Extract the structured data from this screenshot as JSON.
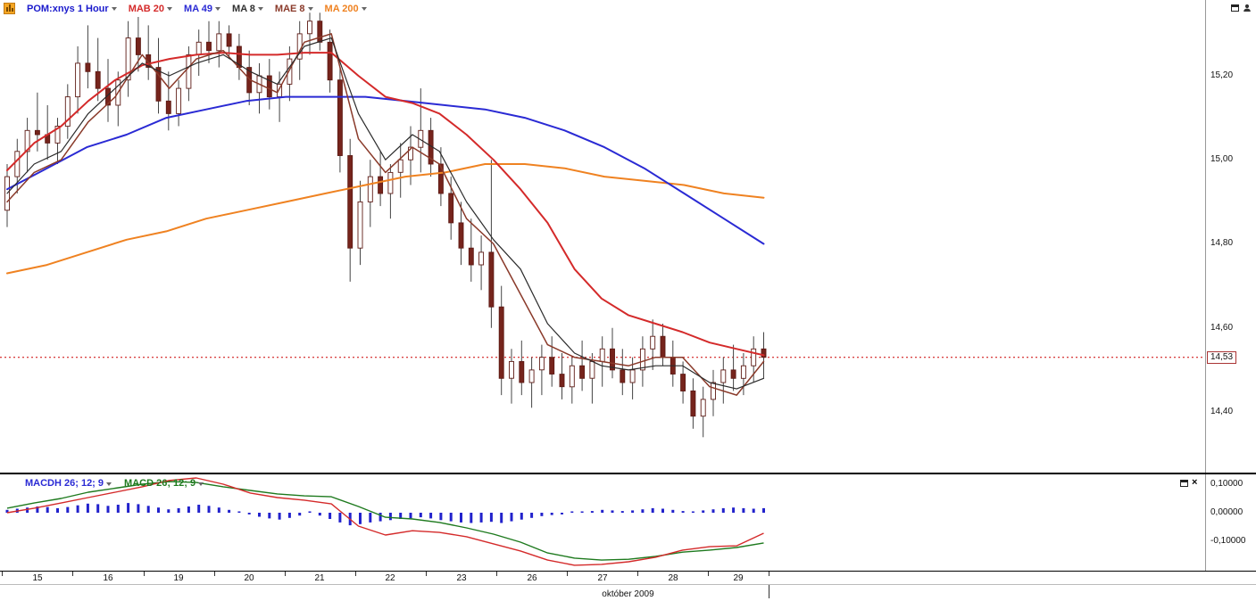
{
  "toolbar": {
    "symbol_label": "POM:xnys 1 Hour",
    "symbol_color": "#1a1acc",
    "indicators": [
      {
        "label": "MAB 20",
        "color": "#d42a2a"
      },
      {
        "label": "MA 49",
        "color": "#2a2ad4"
      },
      {
        "label": "MA 8",
        "color": "#303030"
      },
      {
        "label": "MAE 8",
        "color": "#8a3a2a"
      },
      {
        "label": "MA 200",
        "color": "#ef8221"
      }
    ]
  },
  "macd_panel": {
    "indicators": [
      {
        "label": "MACDH 26; 12; 9",
        "color": "#2a2ad4"
      },
      {
        "label": "MACD 26; 12; 9",
        "color": "#1e7a1e"
      }
    ]
  },
  "chart_data": {
    "type": "candlestick",
    "symbol": "POM:xnys",
    "interval": "1 Hour",
    "month_label": "október 2009",
    "dates": [
      "15",
      "16",
      "19",
      "20",
      "21",
      "22",
      "23",
      "26",
      "27",
      "28",
      "29"
    ],
    "day_start_indices": [
      0,
      7,
      14,
      21,
      28,
      35,
      42,
      49,
      56,
      63,
      70
    ],
    "price_axis": {
      "range": [
        14.26,
        15.38
      ],
      "ticks": [
        {
          "value": 15.2,
          "label": "15,20"
        },
        {
          "value": 15.0,
          "label": "15,00"
        },
        {
          "value": 14.8,
          "label": "14,80"
        },
        {
          "value": 14.6,
          "label": "14,60"
        },
        {
          "value": 14.4,
          "label": "14,40"
        }
      ]
    },
    "current_price": {
      "value": 14.53,
      "label": "14,53"
    },
    "colors": {
      "candle_up_fill": "#ffffff",
      "candle_down_fill": "#76241c",
      "candle_border": "#5d1a14",
      "wick": "#444444",
      "current_price_line": "#cc0000",
      "histogram": "#2222cc"
    },
    "candles": [
      [
        14.88,
        14.99,
        14.84,
        14.96
      ],
      [
        14.96,
        15.05,
        14.92,
        15.02
      ],
      [
        15.02,
        15.1,
        14.97,
        15.07
      ],
      [
        15.07,
        15.16,
        15.02,
        15.06
      ],
      [
        15.06,
        15.13,
        15.0,
        15.04
      ],
      [
        15.04,
        15.1,
        14.99,
        15.08
      ],
      [
        15.08,
        15.18,
        15.05,
        15.15
      ],
      [
        15.15,
        15.27,
        15.11,
        15.23
      ],
      [
        15.23,
        15.32,
        15.17,
        15.21
      ],
      [
        15.21,
        15.29,
        15.14,
        15.17
      ],
      [
        15.17,
        15.24,
        15.09,
        15.13
      ],
      [
        15.13,
        15.21,
        15.08,
        15.19
      ],
      [
        15.19,
        15.33,
        15.15,
        15.29
      ],
      [
        15.29,
        15.34,
        15.21,
        15.25
      ],
      [
        15.25,
        15.32,
        15.19,
        15.22
      ],
      [
        15.22,
        15.29,
        15.11,
        15.14
      ],
      [
        15.14,
        15.21,
        15.07,
        15.11
      ],
      [
        15.11,
        15.19,
        15.08,
        15.17
      ],
      [
        15.17,
        15.27,
        15.14,
        15.25
      ],
      [
        15.25,
        15.31,
        15.2,
        15.28
      ],
      [
        15.28,
        15.33,
        15.23,
        15.26
      ],
      [
        15.26,
        15.33,
        15.22,
        15.3
      ],
      [
        15.3,
        15.32,
        15.24,
        15.27
      ],
      [
        15.27,
        15.3,
        15.19,
        15.22
      ],
      [
        15.22,
        15.26,
        15.13,
        15.16
      ],
      [
        15.16,
        15.23,
        15.11,
        15.2
      ],
      [
        15.2,
        15.24,
        15.12,
        15.15
      ],
      [
        15.15,
        15.21,
        15.09,
        15.18
      ],
      [
        15.18,
        15.27,
        15.14,
        15.24
      ],
      [
        15.24,
        15.33,
        15.19,
        15.3
      ],
      [
        15.3,
        15.35,
        15.25,
        15.33
      ],
      [
        15.33,
        15.35,
        15.26,
        15.28
      ],
      [
        15.28,
        15.31,
        15.16,
        15.19
      ],
      [
        15.19,
        15.22,
        14.97,
        15.01
      ],
      [
        15.01,
        15.05,
        14.71,
        14.79
      ],
      [
        14.79,
        14.95,
        14.75,
        14.9
      ],
      [
        14.9,
        15.0,
        14.84,
        14.96
      ],
      [
        14.96,
        15.02,
        14.89,
        14.92
      ],
      [
        14.92,
        14.99,
        14.86,
        14.97
      ],
      [
        14.97,
        15.04,
        14.91,
        15.0
      ],
      [
        15.0,
        15.08,
        14.94,
        15.03
      ],
      [
        15.03,
        15.17,
        14.97,
        15.07
      ],
      [
        15.07,
        15.1,
        14.96,
        14.99
      ],
      [
        14.99,
        15.03,
        14.89,
        14.92
      ],
      [
        14.92,
        14.96,
        14.81,
        14.85
      ],
      [
        14.85,
        14.9,
        14.75,
        14.79
      ],
      [
        14.79,
        14.86,
        14.71,
        14.75
      ],
      [
        14.75,
        14.82,
        14.69,
        14.78
      ],
      [
        14.78,
        15.0,
        14.6,
        14.65
      ],
      [
        14.65,
        14.7,
        14.44,
        14.48
      ],
      [
        14.48,
        14.55,
        14.42,
        14.52
      ],
      [
        14.52,
        14.57,
        14.44,
        14.47
      ],
      [
        14.47,
        14.53,
        14.41,
        14.5
      ],
      [
        14.5,
        14.56,
        14.44,
        14.53
      ],
      [
        14.53,
        14.58,
        14.46,
        14.49
      ],
      [
        14.49,
        14.54,
        14.43,
        14.46
      ],
      [
        14.46,
        14.53,
        14.42,
        14.51
      ],
      [
        14.51,
        14.57,
        14.45,
        14.48
      ],
      [
        14.48,
        14.54,
        14.42,
        14.52
      ],
      [
        14.52,
        14.58,
        14.46,
        14.55
      ],
      [
        14.55,
        14.6,
        14.48,
        14.5
      ],
      [
        14.5,
        14.55,
        14.44,
        14.47
      ],
      [
        14.47,
        14.53,
        14.43,
        14.5
      ],
      [
        14.5,
        14.58,
        14.46,
        14.55
      ],
      [
        14.55,
        14.62,
        14.5,
        14.58
      ],
      [
        14.58,
        14.61,
        14.51,
        14.53
      ],
      [
        14.53,
        14.57,
        14.46,
        14.49
      ],
      [
        14.49,
        14.52,
        14.42,
        14.45
      ],
      [
        14.45,
        14.48,
        14.36,
        14.39
      ],
      [
        14.39,
        14.46,
        14.34,
        14.43
      ],
      [
        14.43,
        14.5,
        14.39,
        14.47
      ],
      [
        14.47,
        14.53,
        14.42,
        14.5
      ],
      [
        14.5,
        14.56,
        14.45,
        14.48
      ],
      [
        14.48,
        14.54,
        14.44,
        14.51
      ],
      [
        14.51,
        14.58,
        14.47,
        14.55
      ],
      [
        14.55,
        14.59,
        14.48,
        14.53
      ]
    ],
    "ma_series": [
      {
        "name": "MA 200",
        "color": "#ef8221",
        "width": 2,
        "values": [
          14.73,
          14.75,
          14.78,
          14.81,
          14.83,
          14.86,
          14.88,
          14.9,
          14.92,
          14.94,
          14.96,
          14.97,
          14.99,
          14.99,
          14.98,
          14.96,
          14.95,
          14.94,
          14.92,
          14.91
        ]
      },
      {
        "name": "MA 49",
        "color": "#2a2ad4",
        "width": 2,
        "values": [
          14.93,
          14.98,
          15.03,
          15.06,
          15.1,
          15.12,
          15.14,
          15.15,
          15.15,
          15.15,
          15.14,
          15.13,
          15.12,
          15.1,
          15.07,
          15.03,
          14.98,
          14.92,
          14.86,
          14.8
        ]
      },
      {
        "name": "MAB 20",
        "color": "#d42a2a",
        "width": 2,
        "values": [
          14.975,
          15.04,
          15.08,
          15.14,
          15.19,
          15.225,
          15.24,
          15.25,
          15.255,
          15.25,
          15.25,
          15.255,
          15.255,
          15.2,
          15.15,
          15.135,
          15.11,
          15.06,
          15.0,
          14.93,
          14.85,
          14.74,
          14.67,
          14.63,
          14.61,
          14.59,
          14.565,
          14.55,
          14.535
        ]
      },
      {
        "name": "MAE 8",
        "color": "#8a3a2a",
        "width": 1.5,
        "values": [
          14.9,
          14.97,
          15.0,
          15.09,
          15.15,
          15.25,
          15.17,
          15.24,
          15.26,
          15.19,
          15.16,
          15.28,
          15.3,
          15.05,
          14.97,
          15.03,
          14.99,
          14.86,
          14.8,
          14.68,
          14.56,
          14.53,
          14.52,
          14.51,
          14.53,
          14.53,
          14.46,
          14.44,
          14.52
        ]
      },
      {
        "name": "MA 8",
        "color": "#2b2b2b",
        "width": 1.2,
        "values": [
          14.92,
          14.99,
          15.02,
          15.11,
          15.17,
          15.23,
          15.2,
          15.23,
          15.25,
          15.21,
          15.18,
          15.27,
          15.29,
          15.11,
          15.0,
          15.06,
          15.02,
          14.9,
          14.81,
          14.74,
          14.61,
          14.54,
          14.51,
          14.5,
          14.51,
          14.51,
          14.47,
          14.455,
          14.48
        ]
      }
    ],
    "macd": {
      "range": [
        -0.2,
        0.12
      ],
      "axis_ticks": [
        {
          "value": 0.1,
          "label": "0,10000"
        },
        {
          "value": 0.0,
          "label": "0,00000"
        },
        {
          "value": -0.1,
          "label": "-0,10000"
        }
      ],
      "histogram": [
        0.01,
        0.014,
        0.018,
        0.022,
        0.02,
        0.016,
        0.02,
        0.026,
        0.032,
        0.03,
        0.024,
        0.028,
        0.034,
        0.03,
        0.024,
        0.018,
        0.012,
        0.016,
        0.022,
        0.028,
        0.024,
        0.018,
        0.01,
        0.002,
        -0.006,
        -0.014,
        -0.02,
        -0.024,
        -0.018,
        -0.01,
        -0.004,
        -0.01,
        -0.022,
        -0.034,
        -0.044,
        -0.04,
        -0.034,
        -0.03,
        -0.026,
        -0.022,
        -0.02,
        -0.016,
        -0.02,
        -0.026,
        -0.03,
        -0.034,
        -0.036,
        -0.034,
        -0.032,
        -0.036,
        -0.03,
        -0.024,
        -0.018,
        -0.012,
        -0.008,
        -0.006,
        -0.004,
        0.002,
        0.006,
        0.01,
        0.008,
        0.006,
        0.008,
        0.012,
        0.016,
        0.014,
        0.01,
        0.006,
        0.004,
        0.008,
        0.012,
        0.016,
        0.018,
        0.016,
        0.014,
        0.016
      ],
      "macd_line": {
        "color": "#1e7a1e",
        "values": [
          0.016,
          0.034,
          0.05,
          0.072,
          0.086,
          0.1,
          0.109,
          0.106,
          0.091,
          0.078,
          0.066,
          0.059,
          0.056,
          0.022,
          -0.016,
          -0.022,
          -0.034,
          -0.053,
          -0.075,
          -0.103,
          -0.141,
          -0.159,
          -0.166,
          -0.163,
          -0.153,
          -0.138,
          -0.131,
          -0.122,
          -0.106
        ]
      },
      "signal_line": {
        "color": "#d42a2a",
        "values": [
          0.0,
          0.016,
          0.034,
          0.053,
          0.072,
          0.091,
          0.113,
          0.122,
          0.1,
          0.069,
          0.053,
          0.044,
          0.031,
          -0.047,
          -0.078,
          -0.063,
          -0.069,
          -0.084,
          -0.109,
          -0.134,
          -0.166,
          -0.184,
          -0.181,
          -0.172,
          -0.156,
          -0.131,
          -0.119,
          -0.116,
          -0.072
        ]
      }
    }
  }
}
